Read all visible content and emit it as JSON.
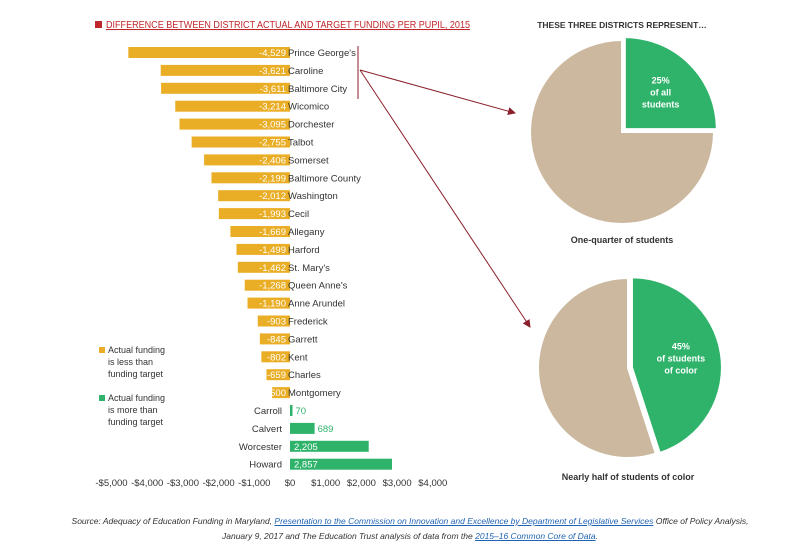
{
  "chart_data": [
    {
      "type": "bar",
      "orientation": "horizontal",
      "title": "DIFFERENCE BETWEEN DISTRICT ACTUAL AND TARGET FUNDING PER PUPIL, 2015",
      "categories": [
        "Prince George's",
        "Caroline",
        "Baltimore City",
        "Wicomico",
        "Dorchester",
        "Talbot",
        "Somerset",
        "Baltimore County",
        "Washington",
        "Cecil",
        "Allegany",
        "Harford",
        "St. Mary's",
        "Queen Anne's",
        "Anne Arundel",
        "Frederick",
        "Garrett",
        "Kent",
        "Charles",
        "Montgomery",
        "Carroll",
        "Calvert",
        "Worcester",
        "Howard"
      ],
      "values": [
        -4529,
        -3621,
        -3611,
        -3214,
        -3095,
        -2755,
        -2406,
        -2199,
        -2012,
        -1993,
        -1669,
        -1499,
        -1462,
        -1268,
        -1190,
        -903,
        -845,
        -802,
        -659,
        -500,
        70,
        689,
        2205,
        2857
      ],
      "value_labels": [
        "-4,529",
        "-3,621",
        "-3,611",
        "-3,214",
        "-3,095",
        "-2,755",
        "-2,406",
        "-2,199",
        "-2,012",
        "-1,993",
        "-1,669",
        "-1,499",
        "-1,462",
        "-1,268",
        "-1,190",
        "-903",
        "-845",
        "-802",
        "-659",
        "-500",
        "70",
        "689",
        "2,205",
        "2,857"
      ],
      "xlim": [
        -5000,
        4000
      ],
      "x_ticks": [
        -5000,
        -4000,
        -3000,
        -2000,
        -1000,
        0,
        1000,
        2000,
        3000,
        4000
      ],
      "x_tick_labels": [
        "-$5,000",
        "-$4,000",
        "-$3,000",
        "-$2,000",
        "-$1,000",
        "$0",
        "$1,000",
        "$2,000",
        "$3,000",
        "$4,000"
      ],
      "legend": [
        {
          "label": "Actual funding is less than funding target",
          "lines": [
            "Actual funding",
            "is less than",
            "funding target"
          ],
          "color": "#e9ae26"
        },
        {
          "label": "Actual funding is more than funding target",
          "lines": [
            "Actual funding",
            "is more than",
            "funding target"
          ],
          "color": "#2fb36b"
        }
      ],
      "colors": {
        "negative": "#e9ae26",
        "positive": "#2fb36b",
        "title": "#c0272d",
        "connector": "#8a1e2a"
      }
    },
    {
      "type": "pie",
      "heading": "THESE THREE DISTRICTS REPRESENT…",
      "slices": [
        {
          "label": "25% of all students",
          "lines": [
            "25%",
            "of all",
            "students"
          ],
          "value": 25,
          "color": "#2fb36b"
        },
        {
          "value": 75,
          "color": "#cbb89e"
        }
      ],
      "caption": "One-quarter of students"
    },
    {
      "type": "pie",
      "slices": [
        {
          "label": "45% of students of color",
          "lines": [
            "45%",
            "of students",
            "of color"
          ],
          "value": 45,
          "color": "#2fb36b"
        },
        {
          "value": 55,
          "color": "#cbb89e"
        }
      ],
      "caption": "Nearly half of students of color"
    }
  ],
  "source": {
    "p1": "Source: Adequacy of Education Funding in Maryland, ",
    "link1": "Presentation to the Commission on Innovation and Excellence by Department of Legislative Services",
    "p2": " Office of Policy Analysis,",
    "p3": "January 9, 2017 and The Education Trust analysis of data from the ",
    "link2": "2015–16 Common Core of Data",
    "p4": "."
  }
}
